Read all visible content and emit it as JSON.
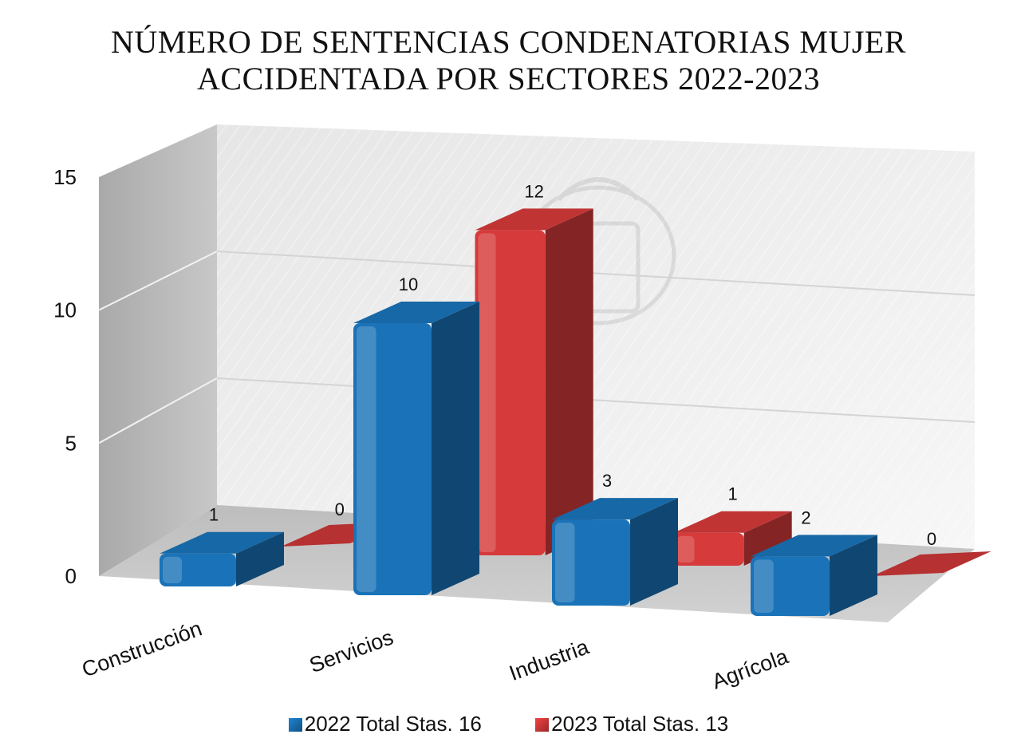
{
  "chart_data": {
    "type": "bar",
    "title_lines": [
      "NÚMERO DE SENTENCIAS CONDENATORIAS MUJER",
      "ACCIDENTADA POR SECTORES 2022-2023"
    ],
    "categories": [
      "Construcción",
      "Servicios",
      "Industria",
      "Agrícola"
    ],
    "series": [
      {
        "name": "2022 Total Stas. 16",
        "values": [
          1,
          10,
          3,
          2
        ],
        "color": "#1a73b8"
      },
      {
        "name": "2023 Total Stas. 13",
        "values": [
          0,
          12,
          1,
          0
        ],
        "color": "#d63a3a"
      }
    ],
    "y_ticks": [
      "0",
      "5",
      "10",
      "15"
    ],
    "ylim": [
      0,
      15
    ],
    "grid": true,
    "legend_position": "bottom",
    "style": "3d-clustered-column"
  }
}
